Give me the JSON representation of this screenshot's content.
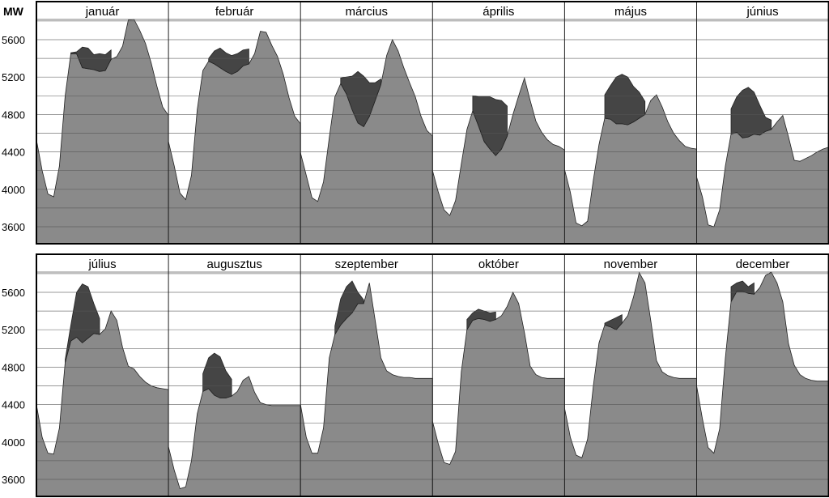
{
  "chart_data": {
    "type": "area",
    "ylabel": "MW",
    "ylim": [
      3400,
      5900
    ],
    "yticks": [
      3600,
      4000,
      4400,
      4800,
      5200,
      5600
    ],
    "ytick_labels": [
      "3600",
      "4000",
      "4400",
      "4800",
      "5200",
      "5600"
    ],
    "grid": true,
    "x": [
      "1",
      "2",
      "3",
      "4",
      "5",
      "6",
      "7",
      "8",
      "9",
      "10",
      "11",
      "12",
      "13",
      "14",
      "15",
      "16",
      "17",
      "18",
      "19",
      "20",
      "21",
      "22",
      "23",
      "24"
    ],
    "colors": {
      "base": "#8a8a8a",
      "peak": "#454545",
      "outline": "#222222",
      "grid": "#555555",
      "frame": "#000000"
    },
    "months": [
      {
        "name": "január",
        "base": [
          4530,
          4200,
          3950,
          3920,
          4250,
          5000,
          5450,
          5450,
          5300,
          5290,
          5280,
          5260,
          5270,
          5390,
          5420,
          5530,
          5810,
          5820,
          5700,
          5560,
          5350,
          5100,
          4880,
          4790
        ],
        "peak": [
          null,
          null,
          null,
          null,
          null,
          null,
          5460,
          5470,
          5520,
          5510,
          5440,
          5450,
          5440,
          5490,
          null,
          null,
          null,
          null,
          null,
          null,
          null,
          null,
          null,
          null
        ]
      },
      {
        "name": "február",
        "base": [
          4510,
          4250,
          3960,
          3890,
          4150,
          4850,
          5270,
          5370,
          5340,
          5300,
          5260,
          5230,
          5260,
          5320,
          5340,
          5450,
          5690,
          5680,
          5540,
          5420,
          5230,
          4980,
          4780,
          4700
        ],
        "peak": [
          null,
          null,
          null,
          null,
          null,
          null,
          null,
          5400,
          5480,
          5510,
          5460,
          5430,
          5450,
          5490,
          5500,
          null,
          null,
          null,
          null,
          null,
          null,
          null,
          null,
          null
        ]
      },
      {
        "name": "március",
        "base": [
          4390,
          4150,
          3910,
          3870,
          4080,
          4550,
          4990,
          5130,
          5020,
          4850,
          4710,
          4670,
          4780,
          4950,
          5120,
          5430,
          5600,
          5480,
          5300,
          5140,
          4990,
          4780,
          4630,
          4570
        ],
        "peak": [
          null,
          null,
          null,
          null,
          null,
          null,
          null,
          5190,
          5200,
          5210,
          5260,
          5210,
          5140,
          5140,
          5180,
          null,
          null,
          null,
          null,
          null,
          null,
          null,
          null,
          null
        ]
      },
      {
        "name": "április",
        "base": [
          4200,
          3970,
          3780,
          3720,
          3880,
          4270,
          4640,
          4840,
          4680,
          4510,
          4430,
          4360,
          4430,
          4570,
          4800,
          5000,
          5190,
          4950,
          4730,
          4610,
          4530,
          4480,
          4460,
          4420
        ],
        "peak": [
          null,
          null,
          null,
          null,
          null,
          null,
          null,
          5000,
          4990,
          4990,
          4990,
          4960,
          4950,
          4890,
          null,
          null,
          null,
          null,
          null,
          null,
          null,
          null,
          null,
          null
        ]
      },
      {
        "name": "május",
        "base": [
          4210,
          3970,
          3640,
          3610,
          3660,
          4100,
          4480,
          4760,
          4750,
          4700,
          4700,
          4690,
          4720,
          4760,
          4800,
          4950,
          5010,
          4880,
          4720,
          4600,
          4520,
          4460,
          4440,
          4430
        ],
        "peak": [
          null,
          null,
          null,
          null,
          null,
          null,
          null,
          5010,
          5110,
          5200,
          5230,
          5200,
          5100,
          5040,
          4940,
          null,
          null,
          null,
          null,
          null,
          null,
          null,
          null,
          null
        ]
      },
      {
        "name": "június",
        "base": [
          4130,
          3920,
          3620,
          3600,
          3780,
          4250,
          4590,
          4610,
          4550,
          4560,
          4590,
          4580,
          4620,
          4640,
          4720,
          4790,
          4560,
          4310,
          4300,
          4330,
          4360,
          4400,
          4430,
          4450
        ],
        "peak": [
          null,
          null,
          null,
          null,
          null,
          null,
          4860,
          4990,
          5060,
          5090,
          5040,
          4900,
          4770,
          4740,
          null,
          null,
          null,
          null,
          null,
          null,
          null,
          null,
          null,
          null
        ]
      },
      {
        "name": "július",
        "base": [
          4400,
          4050,
          3880,
          3870,
          4150,
          4850,
          5080,
          5120,
          5060,
          5110,
          5160,
          5150,
          5210,
          5400,
          5300,
          5010,
          4810,
          4780,
          4700,
          4640,
          4600,
          4580,
          4570,
          4560
        ],
        "peak": [
          null,
          null,
          null,
          null,
          null,
          4880,
          5250,
          5600,
          5690,
          5660,
          5480,
          5320,
          null,
          null,
          null,
          null,
          null,
          null,
          null,
          null,
          null,
          null,
          null,
          null
        ]
      },
      {
        "name": "augusztus",
        "base": [
          3950,
          3700,
          3500,
          3520,
          3800,
          4300,
          4540,
          4570,
          4500,
          4470,
          4470,
          4490,
          4540,
          4660,
          4700,
          4530,
          4420,
          4400,
          4390,
          4390,
          4390,
          4390,
          4390,
          4390
        ],
        "peak": [
          null,
          null,
          null,
          null,
          null,
          null,
          4730,
          4900,
          4950,
          4910,
          4760,
          4670,
          null,
          null,
          null,
          null,
          null,
          null,
          null,
          null,
          null,
          null,
          null,
          null
        ]
      },
      {
        "name": "szeptember",
        "base": [
          4400,
          4050,
          3880,
          3880,
          4150,
          4900,
          5150,
          5250,
          5320,
          5380,
          5480,
          5480,
          5700,
          5300,
          4900,
          4760,
          4720,
          4700,
          4690,
          4690,
          4680,
          4680,
          4680,
          4680
        ],
        "peak": [
          null,
          null,
          null,
          null,
          null,
          null,
          5240,
          5530,
          5660,
          5720,
          5600,
          5520,
          null,
          null,
          null,
          null,
          null,
          null,
          null,
          null,
          null,
          null,
          null,
          null
        ]
      },
      {
        "name": "október",
        "base": [
          4220,
          3980,
          3780,
          3760,
          3900,
          4750,
          5200,
          5300,
          5320,
          5310,
          5290,
          5310,
          5350,
          5450,
          5600,
          5480,
          5170,
          4810,
          4720,
          4690,
          4680,
          4680,
          4680,
          4680
        ],
        "peak": [
          null,
          null,
          null,
          null,
          null,
          null,
          5310,
          5380,
          5420,
          5400,
          5380,
          5390,
          null,
          null,
          null,
          null,
          null,
          null,
          null,
          null,
          null,
          null,
          null,
          null
        ]
      },
      {
        "name": "november",
        "base": [
          4360,
          4050,
          3860,
          3830,
          4030,
          4600,
          5060,
          5250,
          5230,
          5200,
          5270,
          5350,
          5550,
          5810,
          5700,
          5300,
          4870,
          4750,
          4710,
          4690,
          4680,
          4680,
          4680,
          4680
        ],
        "peak": [
          null,
          null,
          null,
          null,
          null,
          null,
          null,
          5270,
          5300,
          5330,
          5360,
          null,
          null,
          null,
          null,
          null,
          null,
          null,
          null,
          null,
          null,
          null,
          null,
          null
        ]
      },
      {
        "name": "december",
        "base": [
          4600,
          4250,
          3940,
          3880,
          4140,
          4900,
          5500,
          5610,
          5610,
          5590,
          5580,
          5650,
          5780,
          5860,
          5700,
          5500,
          5050,
          4820,
          4720,
          4680,
          4660,
          4650,
          4650,
          4650
        ],
        "peak": [
          null,
          null,
          null,
          null,
          null,
          null,
          5660,
          5700,
          5720,
          5660,
          5700,
          null,
          null,
          null,
          null,
          null,
          null,
          null,
          null,
          null,
          null,
          null,
          null,
          null
        ]
      }
    ]
  }
}
